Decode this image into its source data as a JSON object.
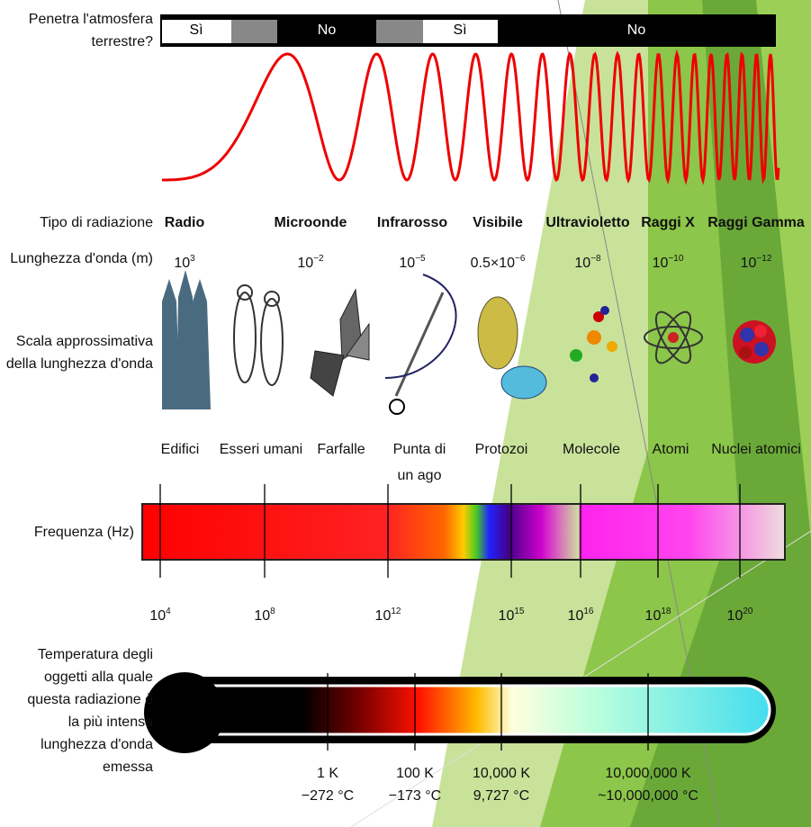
{
  "atmosphere": {
    "label": [
      "Penetra l'atmosfera",
      "terrestre?"
    ],
    "segments": [
      "Sì",
      "No",
      "Sì",
      "No"
    ]
  },
  "labels": {
    "type": "Tipo di radiazione",
    "wavelength": "Lunghezza d'onda (m)",
    "scale": [
      "Scala approssimativa",
      "della lunghezza d'onda"
    ],
    "frequency": "Frequenza (Hz)",
    "temperature": [
      "Temperatura degli",
      "oggetti alla quale",
      "questa radiazione è",
      "la più intensa",
      "lunghezza d'onda",
      "emessa"
    ]
  },
  "radiations": [
    {
      "name": "Radio",
      "wavelength": {
        "base": "10",
        "exp": "3"
      }
    },
    {
      "name": "Microonde",
      "wavelength": {
        "base": "10",
        "exp": "−2"
      }
    },
    {
      "name": "Infrarosso",
      "wavelength": {
        "base": "10",
        "exp": "−5"
      }
    },
    {
      "name": "Visibile",
      "wavelength": {
        "base": "0.5×10",
        "exp": "−6"
      }
    },
    {
      "name": "Ultravioletto",
      "wavelength": {
        "base": "10",
        "exp": "−8"
      }
    },
    {
      "name": "Raggi X",
      "wavelength": {
        "base": "10",
        "exp": "−10"
      }
    },
    {
      "name": "Raggi Gamma",
      "wavelength": {
        "base": "10",
        "exp": "−12"
      }
    }
  ],
  "objects": [
    "Edifici",
    "Esseri umani",
    "Farfalle",
    [
      "Punta di",
      "un ago"
    ],
    "Protozoi",
    "Molecole",
    "Atomi",
    "Nuclei atomici"
  ],
  "frequencies": [
    {
      "base": "10",
      "exp": "4"
    },
    {
      "base": "10",
      "exp": "8"
    },
    {
      "base": "10",
      "exp": "12"
    },
    {
      "base": "10",
      "exp": "15"
    },
    {
      "base": "10",
      "exp": "16"
    },
    {
      "base": "10",
      "exp": "18"
    },
    {
      "base": "10",
      "exp": "20"
    }
  ],
  "temperatures": [
    {
      "kelvin": "1 K",
      "celsius": "−272 °C"
    },
    {
      "kelvin": "100 K",
      "celsius": "−173 °C"
    },
    {
      "kelvin": "10,000 K",
      "celsius": "9,727 °C"
    },
    {
      "kelvin": "10,000,000 K",
      "celsius": "~10,000,000 °C"
    }
  ]
}
